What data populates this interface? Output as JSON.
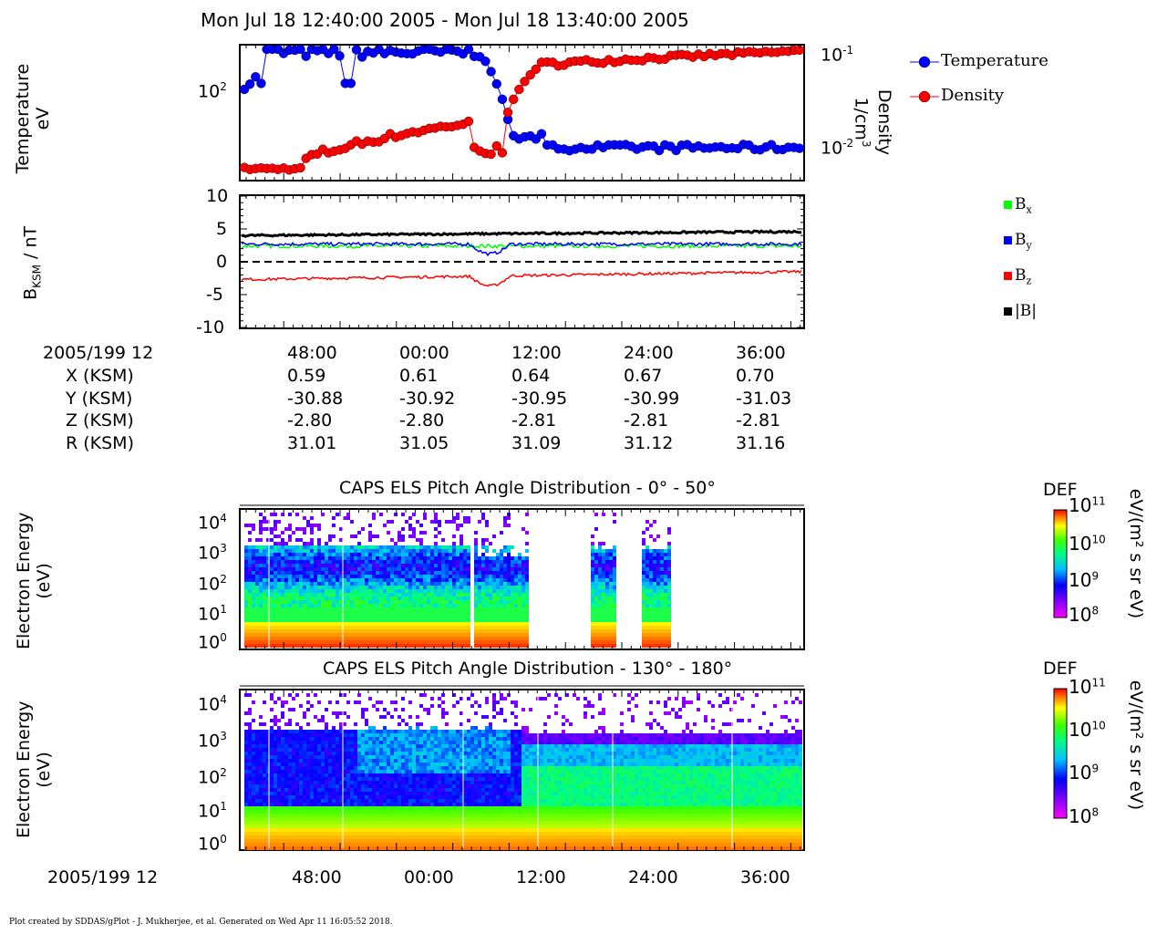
{
  "header": {
    "title": "Mon Jul 18 12:40:00 2005 - Mon Jul 18 13:40:00 2005"
  },
  "panels": {
    "plasma": {
      "ylabel_line1": "Temperature",
      "ylabel_line2": "eV",
      "right_label_line1": "Density",
      "right_label_line2": "1/cm",
      "right_label_sup": "3",
      "left_tick": "10",
      "left_tick_sup": "2",
      "right_tick_top": "10",
      "right_tick_top_sup": "-1",
      "right_tick_bottom": "10",
      "right_tick_bottom_sup": "-2",
      "legend": [
        {
          "label": "Temperature",
          "color": "#0000ff"
        },
        {
          "label": "Density",
          "color": "#ff0000"
        }
      ]
    },
    "magnetic": {
      "ylabel_main": "B",
      "ylabel_sub": "KSM",
      "ylabel_rest": " / nT",
      "yticks": [
        "10",
        "5",
        "0",
        "-5",
        "-10"
      ],
      "legend": [
        {
          "base": "B",
          "sub": "x",
          "color": "#00ff00"
        },
        {
          "base": "B",
          "sub": "y",
          "color": "#0000ff"
        },
        {
          "base": "B",
          "sub": "z",
          "color": "#ff0000"
        },
        {
          "base": "|B|",
          "sub": "",
          "color": "#000000"
        }
      ]
    },
    "els1": {
      "title": "CAPS ELS Pitch Angle Distribution - 0° - 50°",
      "ylabel_line1": "Electron Energy",
      "ylabel_line2": "(eV)",
      "colorbar_title": "DEF",
      "colorbar_units": "eV/(m² s sr eV)"
    },
    "els2": {
      "title": "CAPS ELS Pitch Angle Distribution - 130° - 180°",
      "ylabel_line1": "Electron Energy",
      "ylabel_line2": "(eV)",
      "colorbar_title": "DEF",
      "colorbar_units": "eV/(m² s sr eV)"
    }
  },
  "energy_ticks": [
    {
      "base": "10",
      "sup": "4"
    },
    {
      "base": "10",
      "sup": "3"
    },
    {
      "base": "10",
      "sup": "2"
    },
    {
      "base": "10",
      "sup": "1"
    },
    {
      "base": "10",
      "sup": "0"
    }
  ],
  "colorbar_ticks": [
    {
      "base": "10",
      "sup": "11"
    },
    {
      "base": "10",
      "sup": "10"
    },
    {
      "base": "10",
      "sup": "9"
    },
    {
      "base": "10",
      "sup": "8"
    }
  ],
  "ephemeris": {
    "date_label": "2005/199 12",
    "times": [
      "48:00",
      "00:00",
      "12:00",
      "24:00",
      "36:00"
    ],
    "rows": [
      {
        "label": "X (KSM)",
        "values": [
          "0.59",
          "0.61",
          "0.64",
          "0.67",
          "0.70"
        ]
      },
      {
        "label": "Y (KSM)",
        "values": [
          "-30.88",
          "-30.92",
          "-30.95",
          "-30.99",
          "-31.03"
        ]
      },
      {
        "label": "Z (KSM)",
        "values": [
          "-2.80",
          "-2.80",
          "-2.81",
          "-2.81",
          "-2.81"
        ]
      },
      {
        "label": "R (KSM)",
        "values": [
          "31.01",
          "31.05",
          "31.09",
          "31.12",
          "31.16"
        ]
      }
    ]
  },
  "bottom_axis": {
    "date_label": "2005/199 12",
    "times": [
      "48:00",
      "00:00",
      "12:00",
      "24:00",
      "36:00"
    ]
  },
  "footer": "Plot created by SDDAS/gPlot - J. Mukherjee, et al.  Generated on Wed Apr 11 16:05:52 2018.",
  "chart_data": [
    {
      "type": "scatter",
      "title": "Temperature / Density",
      "x_range": [
        "12:40",
        "13:40"
      ],
      "series": [
        {
          "name": "Temperature",
          "y_axis": "left",
          "log": true,
          "start_values": [
            130,
            100,
            115,
            190,
            200,
            190,
            170,
            175,
            160,
            180,
            175,
            185,
            170,
            130,
            185,
            180,
            185,
            180,
            175,
            180,
            185
          ],
          "end_values": [
            42,
            40,
            39,
            40,
            38,
            39,
            39,
            40,
            41,
            39,
            40,
            40,
            40,
            39
          ]
        },
        {
          "name": "Density",
          "y_axis": "right",
          "log": true,
          "start_values": [
            0.0055,
            0.0056,
            0.006,
            0.0062,
            0.0065,
            0.0075,
            0.009,
            0.011,
            0.012,
            0.016,
            0.018
          ],
          "end_values": [
            0.09,
            0.092,
            0.093,
            0.095,
            0.096,
            0.098,
            0.1,
            0.1,
            0.1,
            0.1
          ]
        }
      ]
    },
    {
      "type": "line",
      "title": "BKSM / nT",
      "ylim": [
        -10,
        10
      ],
      "series": [
        {
          "name": "Bx",
          "approx_level": 2.5
        },
        {
          "name": "By",
          "approx_level": 2.8
        },
        {
          "name": "Bz",
          "approx_level": -2.6
        },
        {
          "name": "|B|",
          "approx_level": 4.0
        }
      ]
    },
    {
      "type": "heatmap",
      "title": "CAPS ELS Pitch Angle Distribution - 0° - 50°",
      "y_range_eV": [
        1,
        20000
      ],
      "color_range": [
        "1e8",
        "1e11"
      ]
    },
    {
      "type": "heatmap",
      "title": "CAPS ELS Pitch Angle Distribution - 130° - 180°",
      "y_range_eV": [
        1,
        20000
      ],
      "color_range": [
        "1e8",
        "1e11"
      ]
    }
  ]
}
